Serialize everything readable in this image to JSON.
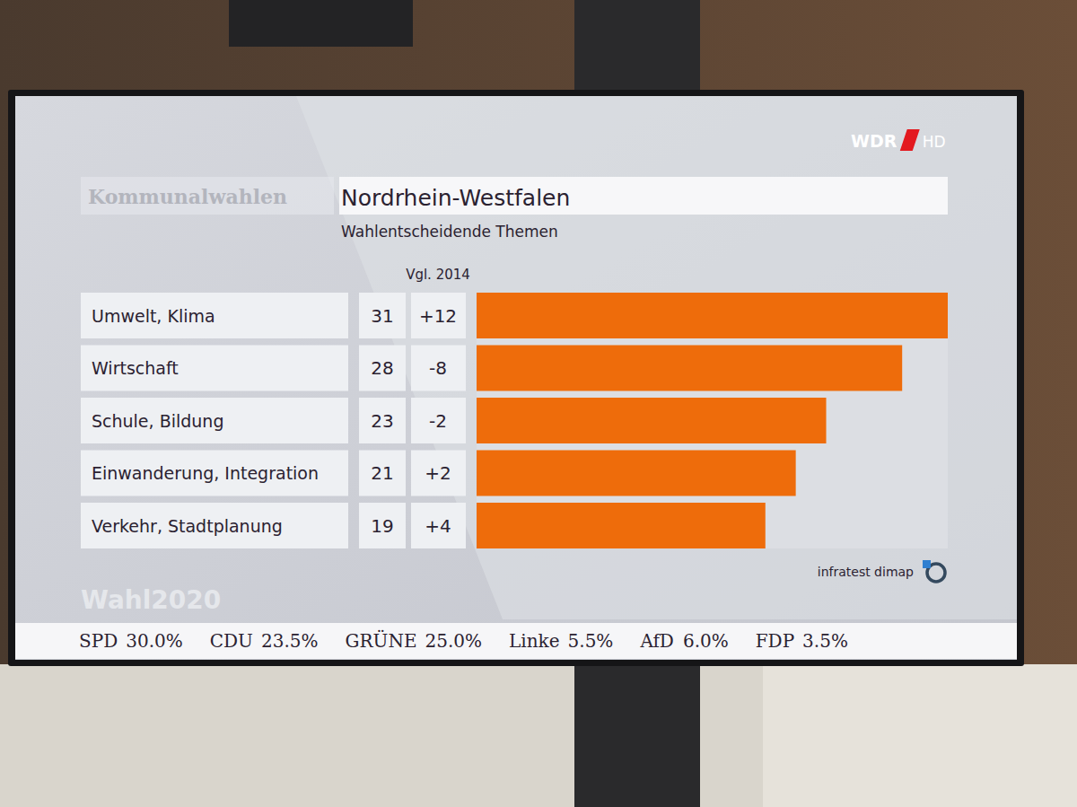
{
  "chart_data": {
    "type": "bar",
    "orientation": "horizontal",
    "kicker": "Kommunalwahlen",
    "title": "Nordrhein-Westfalen",
    "subtitle": "Wahlentscheidende Themen",
    "categories": [
      "Umwelt, Klima",
      "Wirtschaft",
      "Schule, Bildung",
      "Einwanderung, Integration",
      "Verkehr, Stadtplanung"
    ],
    "values": [
      31,
      28,
      23,
      21,
      19
    ],
    "changes": {
      "title": "Vgl. 2014",
      "values": [
        12,
        -8,
        -2,
        2,
        4
      ],
      "value_labels": [
        "+12",
        "-8",
        "-2",
        "+2",
        "+4"
      ]
    },
    "color": "#ee6c0b",
    "xlim": [
      0,
      31
    ],
    "data_labels": true,
    "tick_labels": false,
    "grid": false,
    "source": "infratest dimap",
    "brand": "WDR",
    "brand_suffix": "HD",
    "watermark": "Wahl2020",
    "ticker": [
      {
        "party": "SPD",
        "value": 30.0,
        "label": "30.0%"
      },
      {
        "party": "CDU",
        "value": 23.5,
        "label": "23.5%"
      },
      {
        "party": "GRÜNE",
        "value": 25.0,
        "label": "25.0%"
      },
      {
        "party": "Linke",
        "value": 5.5,
        "label": "5.5%"
      },
      {
        "party": "AfD",
        "value": 6.0,
        "label": "6.0%"
      },
      {
        "party": "FDP",
        "value": 3.5,
        "label": "3.5%"
      }
    ]
  }
}
